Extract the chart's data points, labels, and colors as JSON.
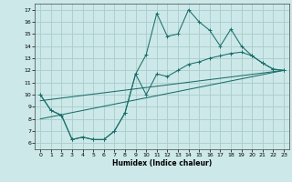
{
  "xlabel": "Humidex (Indice chaleur)",
  "bg_color": "#cce8e8",
  "grid_color": "#aacccc",
  "line_color": "#1a6e6a",
  "xlim": [
    -0.5,
    23.5
  ],
  "ylim": [
    5.5,
    17.5
  ],
  "xticks": [
    0,
    1,
    2,
    3,
    4,
    5,
    6,
    7,
    8,
    9,
    10,
    11,
    12,
    13,
    14,
    15,
    16,
    17,
    18,
    19,
    20,
    21,
    22,
    23
  ],
  "yticks": [
    6,
    7,
    8,
    9,
    10,
    11,
    12,
    13,
    14,
    15,
    16,
    17
  ],
  "line1_x": [
    0,
    1,
    2,
    3,
    4,
    5,
    6,
    7,
    8,
    9,
    10,
    11,
    12,
    13,
    14,
    15,
    16,
    17,
    18,
    19,
    20,
    21,
    22,
    23
  ],
  "line1_y": [
    10.0,
    8.7,
    8.3,
    6.3,
    6.5,
    6.3,
    6.3,
    7.0,
    8.5,
    11.7,
    13.3,
    16.7,
    14.8,
    15.0,
    17.0,
    16.0,
    15.3,
    14.0,
    15.4,
    14.0,
    13.2,
    12.6,
    12.1,
    12.0
  ],
  "line2_x": [
    0,
    1,
    2,
    3,
    4,
    5,
    6,
    7,
    8,
    9,
    10,
    11,
    12,
    13,
    14,
    15,
    16,
    17,
    18,
    19,
    20,
    21,
    22,
    23
  ],
  "line2_y": [
    10.0,
    8.7,
    8.3,
    6.3,
    6.5,
    6.3,
    6.3,
    7.0,
    8.5,
    11.7,
    10.0,
    11.7,
    11.5,
    12.0,
    12.5,
    12.7,
    13.0,
    13.2,
    13.4,
    13.5,
    13.2,
    12.6,
    12.1,
    12.0
  ],
  "line3_x": [
    0,
    23
  ],
  "line3_y": [
    9.5,
    12.0
  ],
  "line4_x": [
    0,
    23
  ],
  "line4_y": [
    8.0,
    12.0
  ]
}
